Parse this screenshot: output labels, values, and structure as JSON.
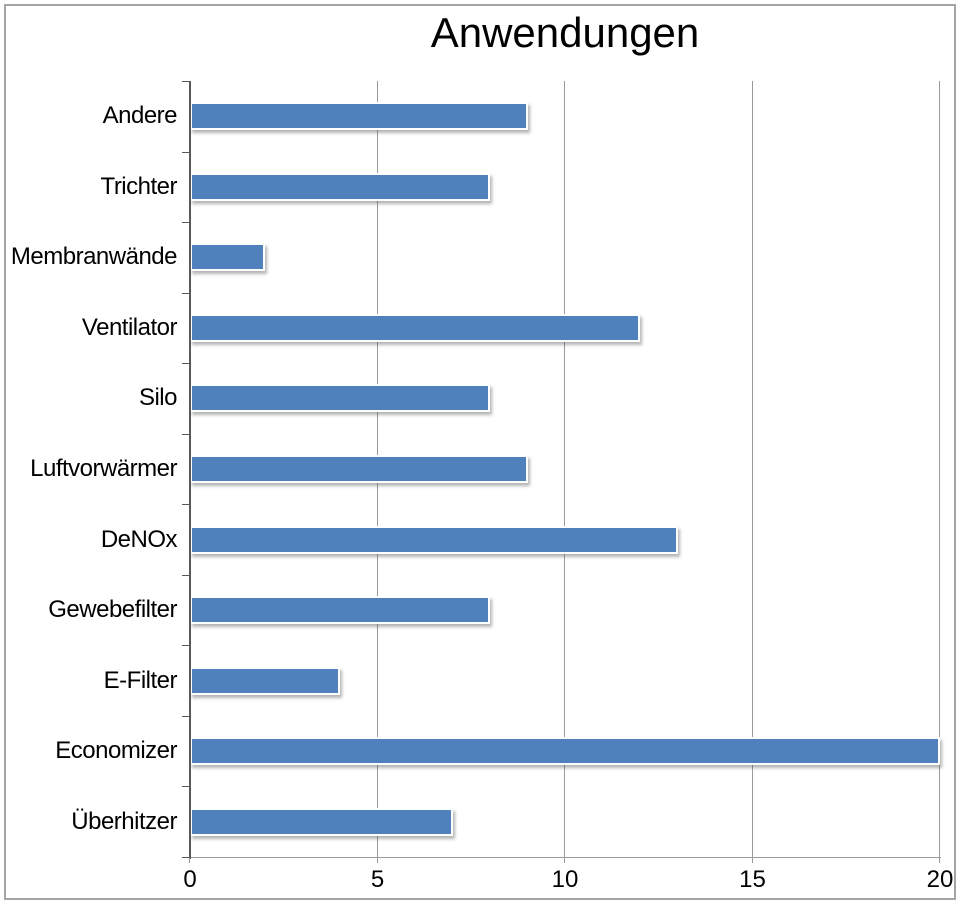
{
  "chart_data": {
    "type": "bar",
    "orientation": "horizontal",
    "title": "Anwendungen",
    "categories": [
      "Andere",
      "Trichter",
      "Membranwände",
      "Ventilator",
      "Silo",
      "Luftvorwärmer",
      "DeNOx",
      "Gewebefilter",
      "E-Filter",
      "Economizer",
      "Überhitzer"
    ],
    "values": [
      9,
      8,
      2,
      12,
      8,
      9,
      13,
      8,
      4,
      20,
      7
    ],
    "xlabel": "",
    "ylabel": "",
    "xlim": [
      0,
      20
    ],
    "x_ticks": [
      0,
      5,
      10,
      15,
      20
    ],
    "grid": true,
    "legend": false,
    "colors": {
      "bar": "#4F81BD",
      "gridline": "#9A9A9A",
      "category_axis": "#595959",
      "value_axis": "#9A9A9A",
      "text": "#000000",
      "frame_border": "#A3A3A3",
      "background": "#FFFFFF"
    }
  }
}
